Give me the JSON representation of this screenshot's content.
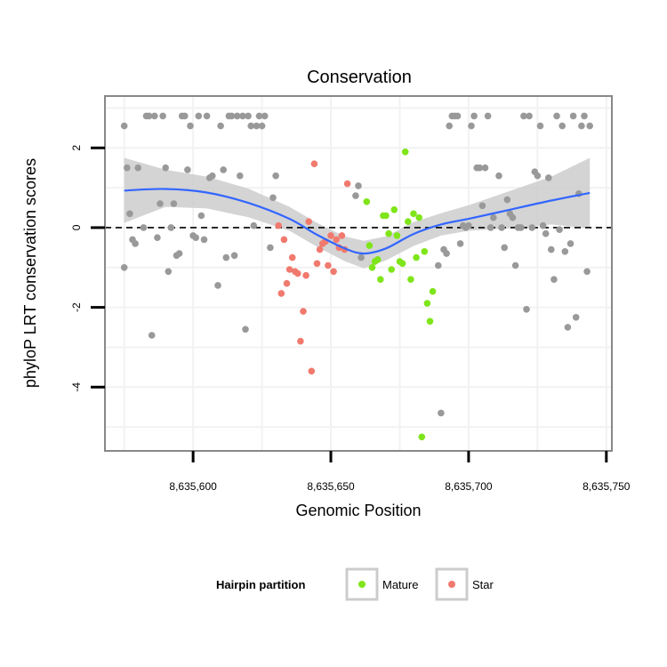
{
  "chart_data": {
    "type": "scatter",
    "title": "Conservation",
    "xlabel": "Genomic Position",
    "ylabel": "phyloP LRT conservation scores",
    "xlim": [
      8635568,
      8635752
    ],
    "ylim": [
      -5.6,
      3.3
    ],
    "x_ticks": [
      8635600,
      8635650,
      8635700,
      8635750
    ],
    "x_tick_labels": [
      "8,635,600",
      "8,635,650",
      "8,635,700",
      "8,635,750"
    ],
    "y_ticks": [
      -4,
      -2,
      0,
      2
    ],
    "y_tick_labels": [
      "-4",
      "-2",
      "0",
      "2"
    ],
    "grid": true,
    "reference_line": {
      "y": 0,
      "style": "dashed"
    },
    "legend": {
      "title": "Hairpin partition",
      "position": "bottom",
      "entries": [
        {
          "label": "Mature",
          "color": "#7FE51A"
        },
        {
          "label": "Star",
          "color": "#F07A6E"
        }
      ]
    },
    "colors": {
      "other": "#999999",
      "Mature": "#7FE51A",
      "Star": "#F07A6E",
      "smooth": "#3366FF",
      "band": "#cccccc",
      "panel_border": "#888888",
      "grid": "#f2f2f2"
    },
    "series": [
      {
        "key": "other",
        "points": [
          [
            8635575,
            2.55
          ],
          [
            8635575,
            -1.0
          ],
          [
            8635576,
            1.5
          ],
          [
            8635577,
            0.35
          ],
          [
            8635578,
            -0.3
          ],
          [
            8635579,
            -0.4
          ],
          [
            8635580,
            1.5
          ],
          [
            8635582,
            0.0
          ],
          [
            8635583,
            2.8
          ],
          [
            8635584,
            2.8
          ],
          [
            8635585,
            -2.7
          ],
          [
            8635586,
            2.8
          ],
          [
            8635587,
            -0.25
          ],
          [
            8635588,
            0.6
          ],
          [
            8635589,
            2.8
          ],
          [
            8635590,
            1.5
          ],
          [
            8635591,
            -1.1
          ],
          [
            8635592,
            0.0
          ],
          [
            8635593,
            0.6
          ],
          [
            8635594,
            -0.7
          ],
          [
            8635595,
            -0.65
          ],
          [
            8635596,
            2.8
          ],
          [
            8635597,
            2.8
          ],
          [
            8635598,
            1.45
          ],
          [
            8635599,
            2.55
          ],
          [
            8635600,
            -0.2
          ],
          [
            8635601,
            -0.25
          ],
          [
            8635602,
            2.8
          ],
          [
            8635603,
            0.3
          ],
          [
            8635604,
            -0.3
          ],
          [
            8635605,
            2.8
          ],
          [
            8635606,
            1.25
          ],
          [
            8635607,
            1.3
          ],
          [
            8635609,
            -1.45
          ],
          [
            8635610,
            2.55
          ],
          [
            8635611,
            1.45
          ],
          [
            8635612,
            -0.75
          ],
          [
            8635613,
            2.8
          ],
          [
            8635614,
            2.8
          ],
          [
            8635615,
            -0.7
          ],
          [
            8635616,
            2.8
          ],
          [
            8635617,
            1.3
          ],
          [
            8635618,
            2.8
          ],
          [
            8635619,
            -2.55
          ],
          [
            8635620,
            2.8
          ],
          [
            8635621,
            2.55
          ],
          [
            8635622,
            0.05
          ],
          [
            8635623,
            2.55
          ],
          [
            8635624,
            2.8
          ],
          [
            8635625,
            2.55
          ],
          [
            8635626,
            2.8
          ],
          [
            8635628,
            -0.5
          ],
          [
            8635629,
            0.75
          ],
          [
            8635630,
            1.3
          ],
          [
            8635659,
            0.8
          ],
          [
            8635660,
            1.05
          ],
          [
            8635661,
            -0.75
          ],
          [
            8635689,
            -0.95
          ],
          [
            8635690,
            -4.65
          ],
          [
            8635691,
            -0.55
          ],
          [
            8635692,
            -0.65
          ],
          [
            8635693,
            2.55
          ],
          [
            8635694,
            2.8
          ],
          [
            8635695,
            2.8
          ],
          [
            8635696,
            2.8
          ],
          [
            8635697,
            -0.4
          ],
          [
            8635698,
            0.05
          ],
          [
            8635699,
            0.0
          ],
          [
            8635700,
            0.05
          ],
          [
            8635701,
            2.55
          ],
          [
            8635702,
            2.8
          ],
          [
            8635703,
            1.5
          ],
          [
            8635704,
            1.5
          ],
          [
            8635705,
            0.55
          ],
          [
            8635706,
            1.5
          ],
          [
            8635707,
            2.8
          ],
          [
            8635708,
            0.0
          ],
          [
            8635709,
            0.25
          ],
          [
            8635711,
            1.3
          ],
          [
            8635712,
            0.0
          ],
          [
            8635713,
            -0.5
          ],
          [
            8635714,
            0.7
          ],
          [
            8635715,
            0.35
          ],
          [
            8635716,
            0.25
          ],
          [
            8635717,
            -0.95
          ],
          [
            8635718,
            0.0
          ],
          [
            8635719,
            0.0
          ],
          [
            8635720,
            2.8
          ],
          [
            8635721,
            -2.05
          ],
          [
            8635722,
            2.8
          ],
          [
            8635723,
            0.0
          ],
          [
            8635724,
            1.4
          ],
          [
            8635725,
            1.3
          ],
          [
            8635726,
            2.55
          ],
          [
            8635727,
            0.05
          ],
          [
            8635728,
            -0.15
          ],
          [
            8635729,
            1.25
          ],
          [
            8635730,
            -0.55
          ],
          [
            8635731,
            -1.3
          ],
          [
            8635732,
            2.8
          ],
          [
            8635733,
            -0.05
          ],
          [
            8635734,
            2.55
          ],
          [
            8635735,
            -0.6
          ],
          [
            8635736,
            -2.5
          ],
          [
            8635737,
            -0.4
          ],
          [
            8635738,
            2.8
          ],
          [
            8635739,
            -2.25
          ],
          [
            8635740,
            0.85
          ],
          [
            8635741,
            2.55
          ],
          [
            8635742,
            2.8
          ],
          [
            8635743,
            -1.1
          ],
          [
            8635744,
            2.55
          ]
        ]
      },
      {
        "key": "Star",
        "points": [
          [
            8635631,
            0.05
          ],
          [
            8635632,
            -1.65
          ],
          [
            8635633,
            -0.3
          ],
          [
            8635634,
            -1.4
          ],
          [
            8635635,
            -1.05
          ],
          [
            8635636,
            -0.75
          ],
          [
            8635637,
            -1.1
          ],
          [
            8635638,
            -1.15
          ],
          [
            8635639,
            -2.85
          ],
          [
            8635640,
            -2.1
          ],
          [
            8635641,
            -1.2
          ],
          [
            8635642,
            0.15
          ],
          [
            8635643,
            -3.6
          ],
          [
            8635644,
            1.6
          ],
          [
            8635645,
            -0.9
          ],
          [
            8635646,
            -0.55
          ],
          [
            8635647,
            -0.4
          ],
          [
            8635648,
            -0.35
          ],
          [
            8635649,
            -0.95
          ],
          [
            8635650,
            -0.2
          ],
          [
            8635651,
            -1.1
          ],
          [
            8635652,
            -0.3
          ],
          [
            8635653,
            -0.5
          ],
          [
            8635654,
            -0.2
          ],
          [
            8635655,
            -0.55
          ],
          [
            8635656,
            1.1
          ]
        ]
      },
      {
        "key": "Mature",
        "points": [
          [
            8635663,
            0.65
          ],
          [
            8635664,
            -0.45
          ],
          [
            8635665,
            -1.0
          ],
          [
            8635666,
            -0.85
          ],
          [
            8635667,
            -0.8
          ],
          [
            8635668,
            -1.3
          ],
          [
            8635669,
            0.3
          ],
          [
            8635670,
            0.3
          ],
          [
            8635671,
            -0.15
          ],
          [
            8635672,
            -1.05
          ],
          [
            8635673,
            0.45
          ],
          [
            8635674,
            -0.2
          ],
          [
            8635675,
            -0.85
          ],
          [
            8635676,
            -0.9
          ],
          [
            8635677,
            1.9
          ],
          [
            8635678,
            0.15
          ],
          [
            8635679,
            -1.3
          ],
          [
            8635680,
            0.35
          ],
          [
            8635681,
            -0.75
          ],
          [
            8635682,
            0.25
          ],
          [
            8635683,
            -5.25
          ],
          [
            8635684,
            -0.6
          ],
          [
            8635685,
            -1.9
          ],
          [
            8635686,
            -2.35
          ],
          [
            8635687,
            -1.6
          ]
        ]
      }
    ],
    "smooth_line": [
      [
        8635575,
        0.93
      ],
      [
        8635590,
        0.97
      ],
      [
        8635605,
        0.88
      ],
      [
        8635620,
        0.62
      ],
      [
        8635635,
        0.22
      ],
      [
        8635645,
        -0.18
      ],
      [
        8635655,
        -0.52
      ],
      [
        8635662,
        -0.65
      ],
      [
        8635670,
        -0.52
      ],
      [
        8635680,
        -0.16
      ],
      [
        8635690,
        0.08
      ],
      [
        8635700,
        0.22
      ],
      [
        8635715,
        0.45
      ],
      [
        8635730,
        0.68
      ],
      [
        8635744,
        0.87
      ]
    ],
    "confidence_band": {
      "upper": [
        [
          8635575,
          1.75
        ],
        [
          8635590,
          1.45
        ],
        [
          8635605,
          1.28
        ],
        [
          8635620,
          0.98
        ],
        [
          8635635,
          0.52
        ],
        [
          8635645,
          0.12
        ],
        [
          8635655,
          -0.22
        ],
        [
          8635662,
          -0.33
        ],
        [
          8635670,
          -0.22
        ],
        [
          8635680,
          0.14
        ],
        [
          8635690,
          0.36
        ],
        [
          8635700,
          0.56
        ],
        [
          8635715,
          0.92
        ],
        [
          8635730,
          1.28
        ],
        [
          8635744,
          1.75
        ]
      ],
      "lower": [
        [
          8635575,
          0.12
        ],
        [
          8635590,
          0.52
        ],
        [
          8635605,
          0.48
        ],
        [
          8635620,
          0.26
        ],
        [
          8635635,
          -0.08
        ],
        [
          8635645,
          -0.48
        ],
        [
          8635655,
          -0.84
        ],
        [
          8635662,
          -1.02
        ],
        [
          8635670,
          -0.82
        ],
        [
          8635680,
          -0.46
        ],
        [
          8635690,
          -0.2
        ],
        [
          8635700,
          -0.08
        ],
        [
          8635715,
          -0.02
        ],
        [
          8635730,
          0.08
        ],
        [
          8635744,
          -0.02
        ]
      ]
    }
  }
}
